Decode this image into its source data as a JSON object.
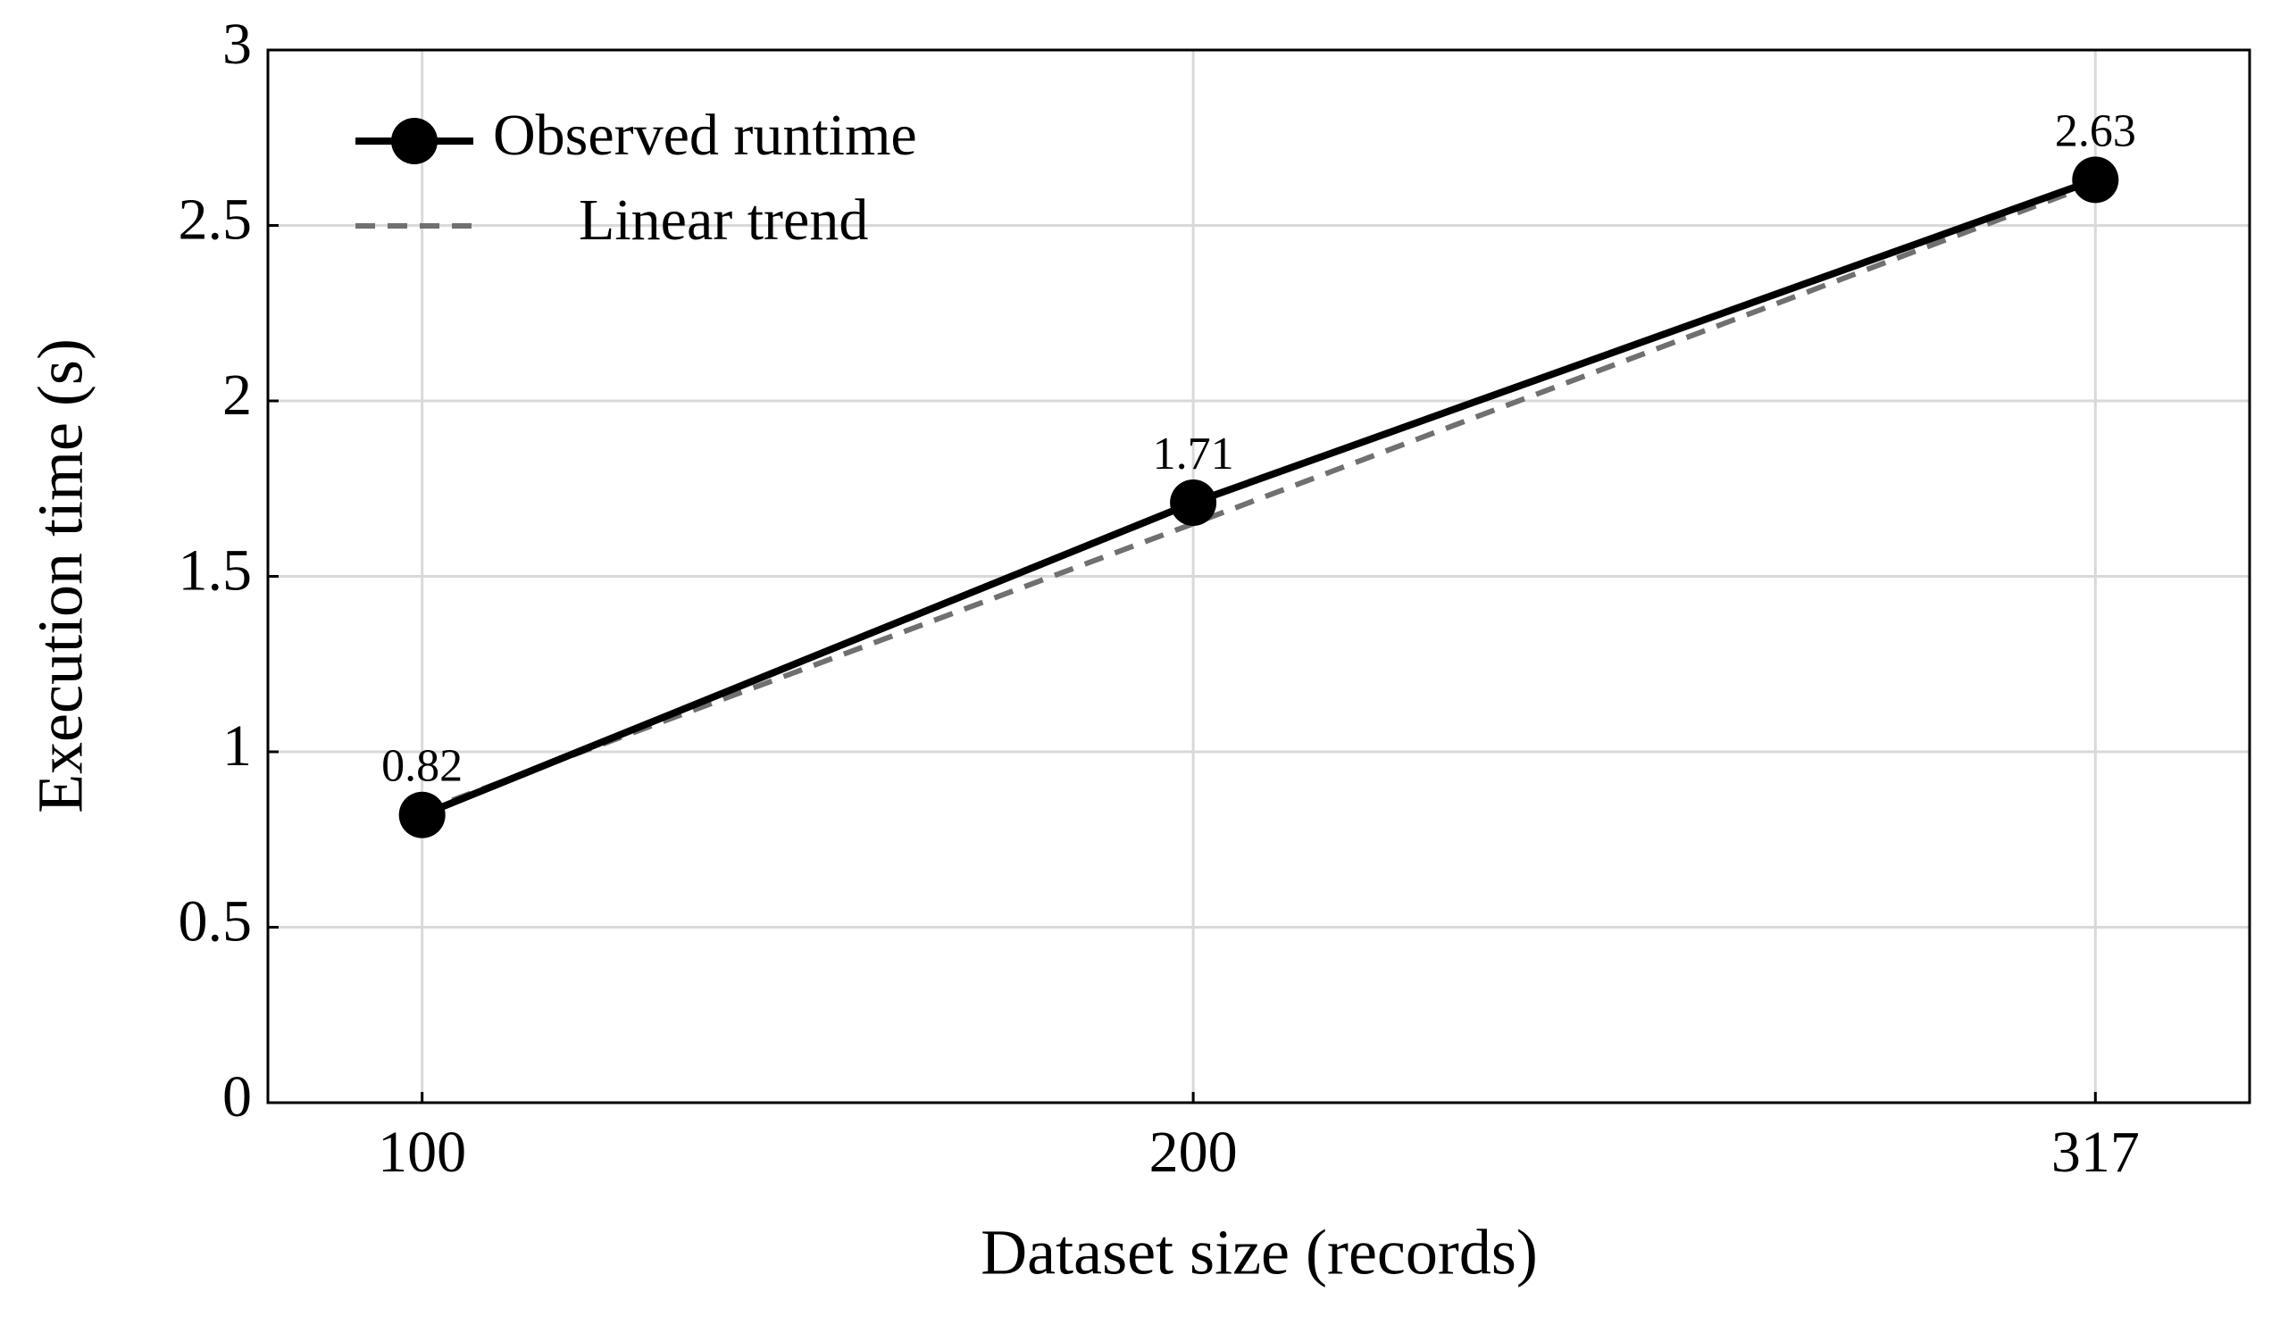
{
  "chart_data": {
    "type": "line",
    "x_label": "Dataset size (records)",
    "y_label": "Execution time (s)",
    "x": [
      100,
      200,
      317
    ],
    "series": [
      {
        "name": "Observed runtime",
        "color": "#000000",
        "values": [
          0.82,
          1.71,
          2.63
        ],
        "markers": true,
        "data_labels": true
      },
      {
        "name": "Linear trend",
        "color": "#707070",
        "values": [
          0.83,
          1.65,
          2.62
        ],
        "dashed": true
      }
    ],
    "xlim": [
      80,
      337
    ],
    "xticks": [
      100,
      200,
      317
    ],
    "ylim": [
      0,
      3
    ],
    "yticks": [
      0,
      0.5,
      1,
      1.5,
      2,
      2.5,
      3
    ],
    "grid": true,
    "legend": "upper left"
  }
}
